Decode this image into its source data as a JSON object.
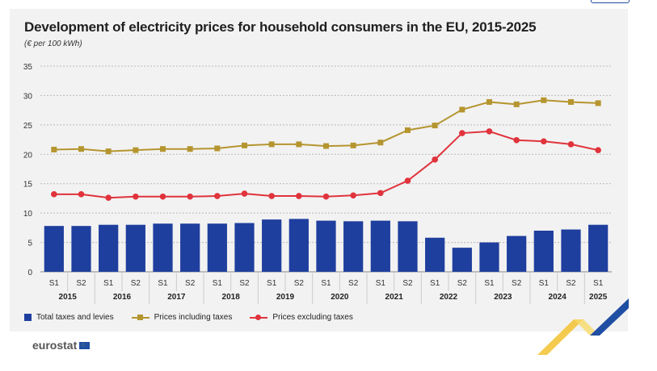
{
  "header": {
    "title": "Development of electricity prices for household consumers in the EU, 2015-2025",
    "subtitle": "(€ per 100 kWh)"
  },
  "legend": {
    "bar": "Total taxes and levies",
    "incl": "Prices including taxes",
    "excl": "Prices excluding taxes"
  },
  "logo": {
    "text": "eurostat"
  },
  "colors": {
    "bar": "#1f3f9e",
    "incl": "#b5952f",
    "excl": "#e0333c"
  },
  "chart_data": {
    "type": "bar",
    "categories": [
      "S1",
      "S2",
      "S1",
      "S2",
      "S1",
      "S2",
      "S1",
      "S2",
      "S1",
      "S2",
      "S1",
      "S2",
      "S1",
      "S2",
      "S1",
      "S2",
      "S1",
      "S2",
      "S1",
      "S2",
      "S1"
    ],
    "years": [
      "2015",
      "2016",
      "2017",
      "2018",
      "2019",
      "2020",
      "2021",
      "2022",
      "2023",
      "2024",
      "2025"
    ],
    "series": [
      {
        "name": "Total taxes and levies",
        "type": "bar",
        "values": [
          7.8,
          7.8,
          8.0,
          8.0,
          8.2,
          8.2,
          8.2,
          8.3,
          8.9,
          9.0,
          8.7,
          8.6,
          8.7,
          8.6,
          5.8,
          4.1,
          5.0,
          6.1,
          7.0,
          7.2,
          8.0
        ]
      },
      {
        "name": "Prices including taxes",
        "type": "line",
        "marker": "square",
        "values": [
          20.8,
          20.9,
          20.5,
          20.7,
          20.9,
          20.9,
          21.0,
          21.5,
          21.7,
          21.7,
          21.4,
          21.5,
          22.0,
          24.1,
          24.9,
          27.6,
          28.9,
          28.5,
          29.2,
          28.9,
          28.7
        ]
      },
      {
        "name": "Prices excluding taxes",
        "type": "line",
        "marker": "circle",
        "values": [
          13.2,
          13.2,
          12.6,
          12.8,
          12.8,
          12.8,
          12.9,
          13.3,
          12.9,
          12.9,
          12.8,
          13.0,
          13.4,
          15.5,
          19.1,
          23.6,
          23.9,
          22.4,
          22.2,
          21.7,
          20.7
        ]
      }
    ],
    "ylim": [
      0,
      35
    ],
    "yticks": [
      0,
      5,
      10,
      15,
      20,
      25,
      30,
      35
    ],
    "grid": true,
    "legend_position": "bottom-left"
  }
}
